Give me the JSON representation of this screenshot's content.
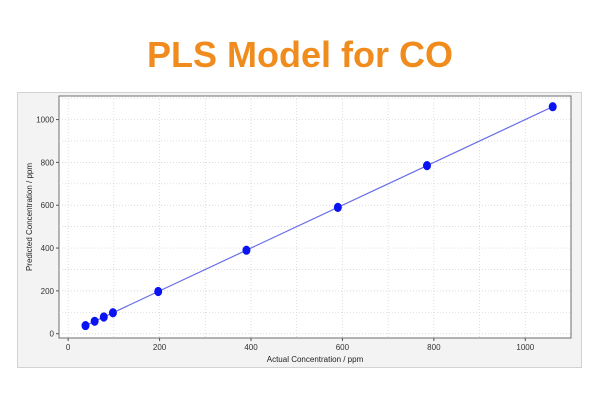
{
  "chart_data": {
    "type": "scatter",
    "title": "PLS Model for CO",
    "xlabel": "Actual Concentration / ppm",
    "ylabel": "Predicted Concentration / ppm",
    "xlim": [
      -20,
      1100
    ],
    "ylim": [
      -20,
      1110
    ],
    "xticks": [
      0,
      200,
      400,
      600,
      800,
      1000
    ],
    "yticks": [
      0,
      200,
      400,
      600,
      800,
      1000
    ],
    "grid": true,
    "series": [
      {
        "x": [
          38,
          58,
          78,
          98,
          197,
          390,
          590,
          785,
          1060
        ],
        "y": [
          38,
          58,
          78,
          98,
          197,
          390,
          590,
          785,
          1060
        ],
        "marker_color": "#0a14f0"
      }
    ],
    "fit_line": {
      "x": [
        38,
        1060
      ],
      "y": [
        38,
        1060
      ],
      "color": "#6a6ee6"
    }
  }
}
